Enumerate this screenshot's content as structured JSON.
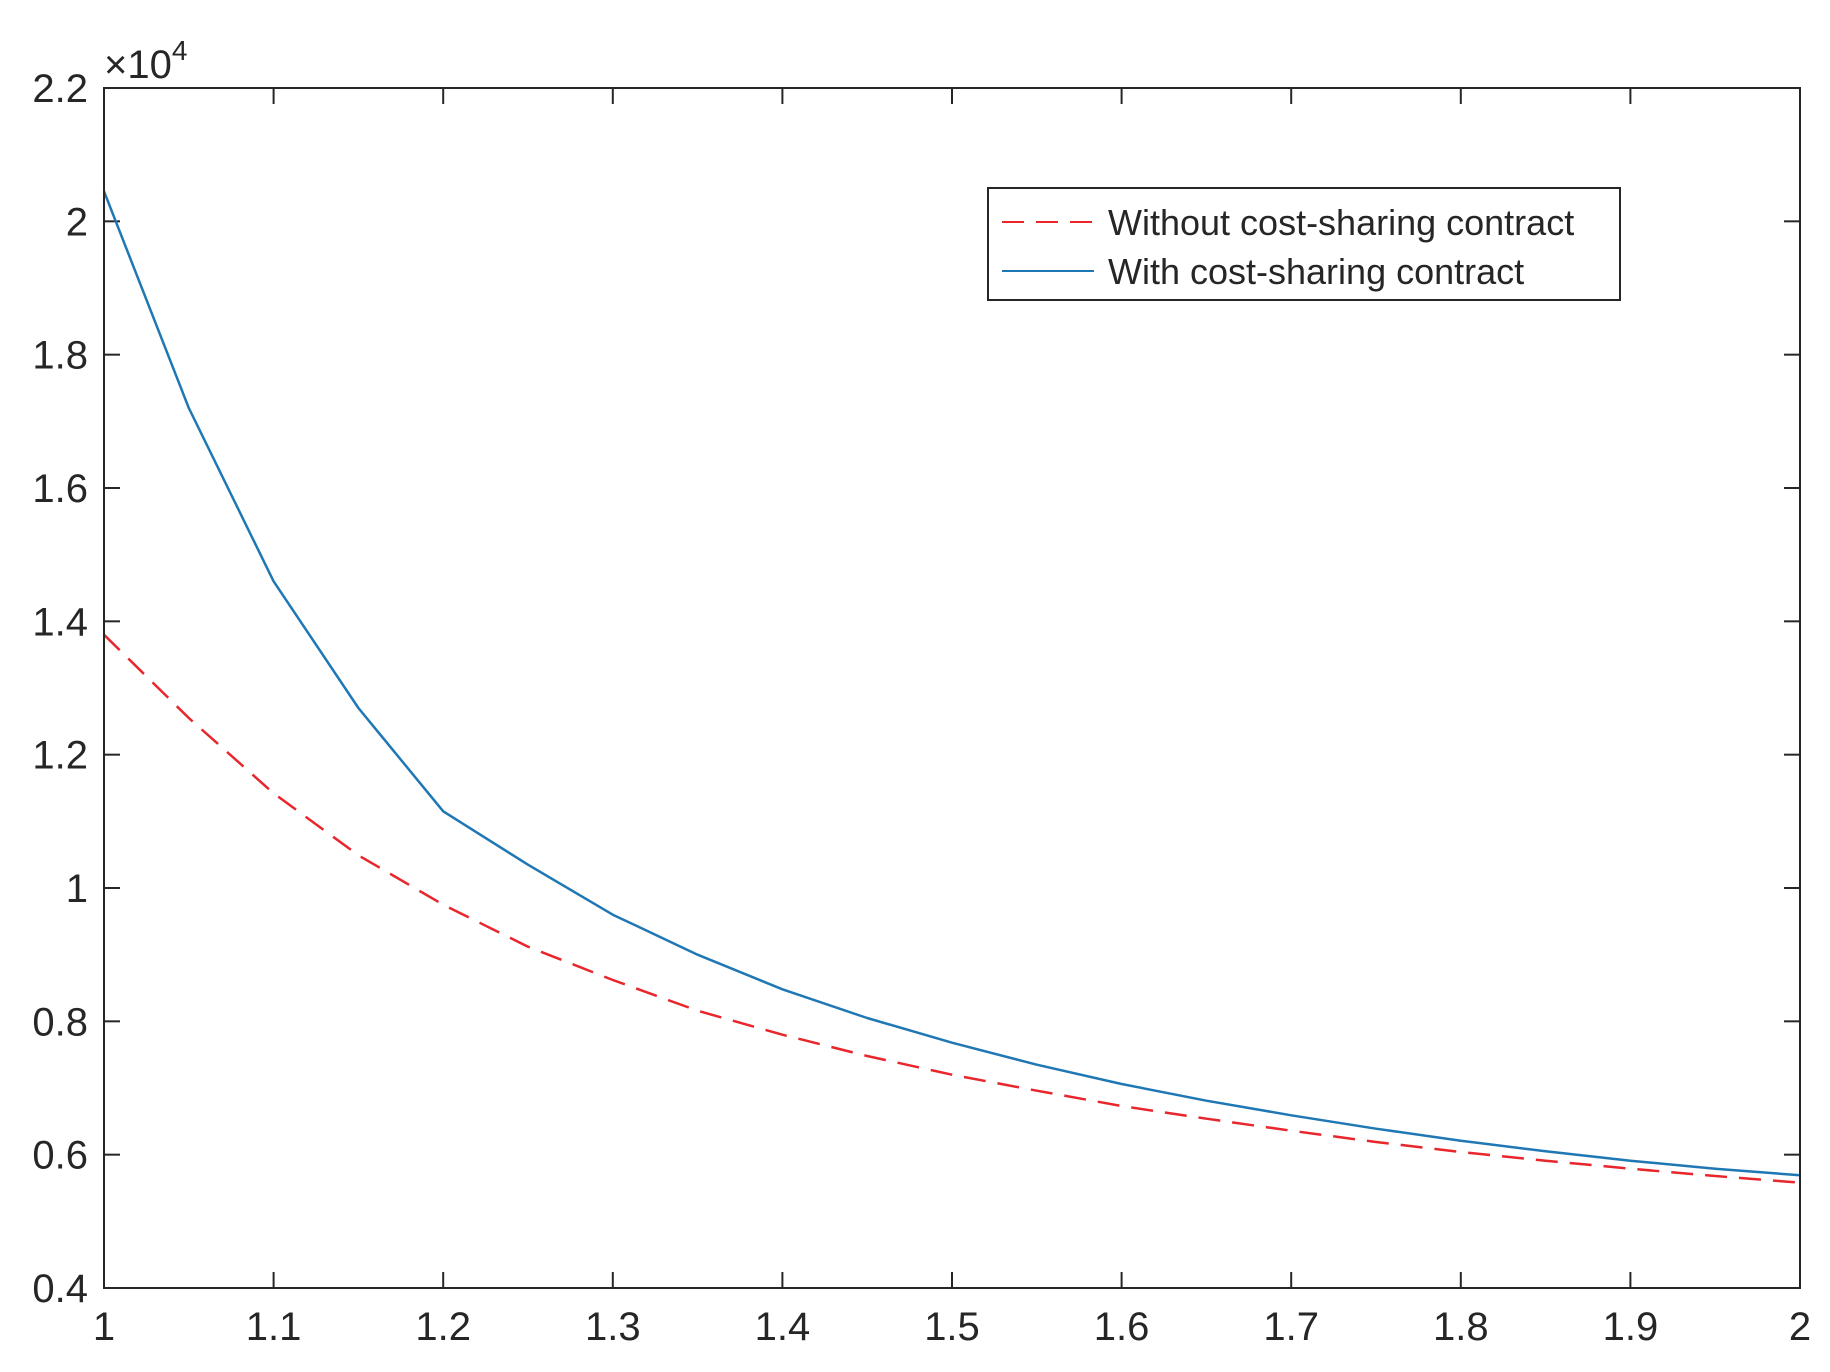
{
  "chart_data": {
    "type": "line",
    "title": "",
    "xlabel": "",
    "ylabel": "",
    "xlim": [
      1,
      2
    ],
    "ylim": [
      0.4,
      2.2
    ],
    "y_multiplier_label": "×10",
    "y_multiplier_exponent": "4",
    "xticks": [
      1,
      1.1,
      1.2,
      1.3,
      1.4,
      1.5,
      1.6,
      1.7,
      1.8,
      1.9,
      2
    ],
    "xtick_labels": [
      "1",
      "1.1",
      "1.2",
      "1.3",
      "1.4",
      "1.5",
      "1.6",
      "1.7",
      "1.8",
      "1.9",
      "2"
    ],
    "yticks": [
      0.4,
      0.6,
      0.8,
      1,
      1.2,
      1.4,
      1.6,
      1.8,
      2,
      2.2
    ],
    "ytick_labels": [
      "0.4",
      "0.6",
      "0.8",
      "1",
      "1.2",
      "1.4",
      "1.6",
      "1.8",
      "2",
      "2.2"
    ],
    "grid": false,
    "legend_position": "top-right",
    "x": [
      1.0,
      1.05,
      1.1,
      1.15,
      1.2,
      1.25,
      1.3,
      1.35,
      1.4,
      1.45,
      1.5,
      1.55,
      1.6,
      1.65,
      1.7,
      1.75,
      1.8,
      1.85,
      1.9,
      1.95,
      2.0
    ],
    "series": [
      {
        "name": "Without cost-sharing contract",
        "color": "#e8262b",
        "style": "dashed",
        "values": [
          1.38,
          1.255,
          1.142,
          1.049,
          0.975,
          0.912,
          0.862,
          0.816,
          0.78,
          0.748,
          0.72,
          0.696,
          0.673,
          0.654,
          0.636,
          0.619,
          0.604,
          0.591,
          0.579,
          0.568,
          0.558
        ]
      },
      {
        "name": "With cost-sharing contract",
        "color": "#1f77b4",
        "style": "solid",
        "values": [
          2.045,
          1.72,
          1.46,
          1.27,
          1.115,
          1.035,
          0.96,
          0.9,
          0.848,
          0.805,
          0.768,
          0.735,
          0.706,
          0.681,
          0.659,
          0.639,
          0.621,
          0.605,
          0.591,
          0.579,
          0.569
        ]
      }
    ]
  }
}
